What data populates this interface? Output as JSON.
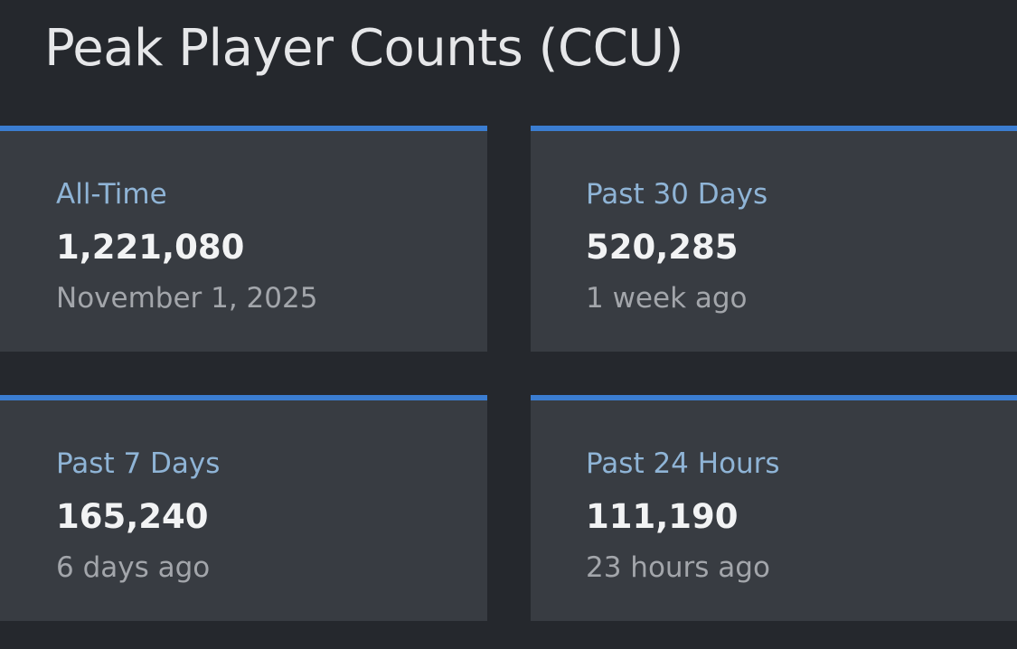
{
  "header": {
    "title": "Peak Player Counts (CCU)"
  },
  "colors": {
    "background": "#25282d",
    "card_background": "#383c42",
    "accent": "#3b7dd1",
    "label": "#8fb4d6",
    "value": "#f2f3f4",
    "subtext": "#a3a6ab"
  },
  "stats": [
    {
      "label": "All-Time",
      "value": "1,221,080",
      "sub": "November 1, 2025"
    },
    {
      "label": "Past 30 Days",
      "value": "520,285",
      "sub": "1 week ago"
    },
    {
      "label": "Past 7 Days",
      "value": "165,240",
      "sub": "6 days ago"
    },
    {
      "label": "Past 24 Hours",
      "value": "111,190",
      "sub": "23 hours ago"
    }
  ]
}
